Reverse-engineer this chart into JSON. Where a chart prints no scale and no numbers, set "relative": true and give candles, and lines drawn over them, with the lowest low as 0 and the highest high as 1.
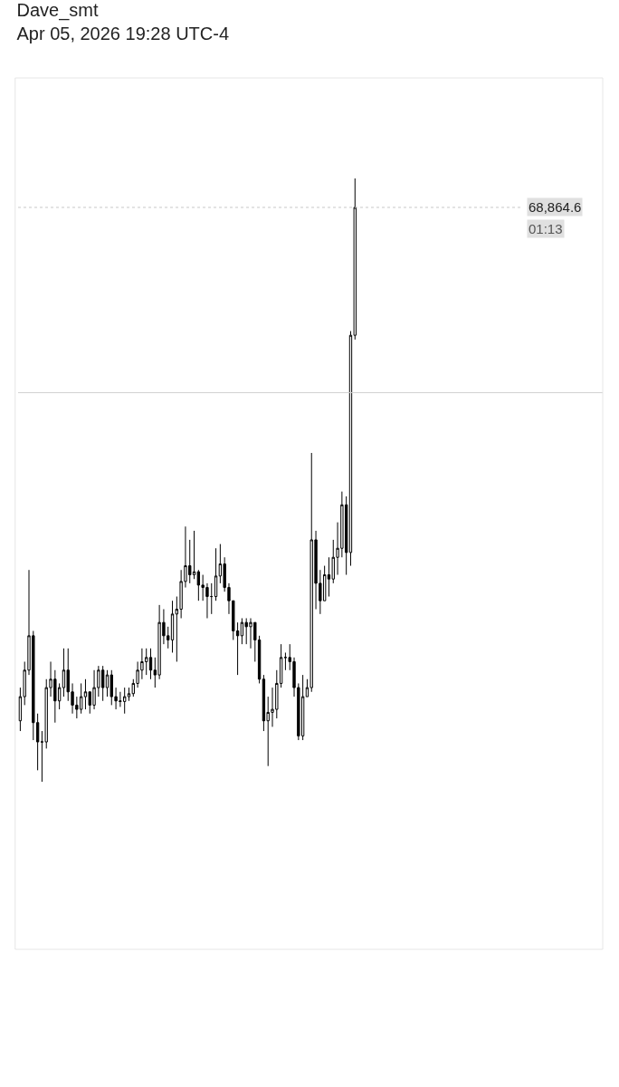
{
  "chart_data": {
    "type": "candlestick",
    "title": "Dave_smt",
    "subtitle": "Apr 05, 2026 19:28 UTC-4",
    "relative": true,
    "legend": false,
    "categories": [
      null,
      null,
      null,
      null,
      null,
      null,
      null,
      null,
      null,
      null,
      null,
      null,
      null,
      null,
      null,
      null,
      null,
      null,
      null,
      null,
      null,
      null,
      null,
      null,
      null,
      null,
      null,
      null,
      null,
      null,
      null,
      null,
      null,
      null,
      null,
      null,
      null,
      null,
      null,
      null,
      null,
      null,
      null,
      null,
      null,
      null,
      null,
      null,
      null,
      null,
      null,
      null,
      null,
      null,
      null,
      null,
      null,
      null,
      null,
      null,
      null,
      null,
      null,
      null,
      null,
      null,
      null,
      null,
      null,
      null,
      null,
      null,
      null,
      null,
      null,
      null,
      null,
      null
    ],
    "color": "#000000",
    "ohlc": [
      [
        0.101,
        0.156,
        0.084,
        0.141
      ],
      [
        0.141,
        0.199,
        0.127,
        0.185
      ],
      [
        0.185,
        0.351,
        0.177,
        0.242
      ],
      [
        0.242,
        0.25,
        0.069,
        0.098
      ],
      [
        0.098,
        0.113,
        0.019,
        0.066
      ],
      [
        0.066,
        0.084,
        0,
        0.066
      ],
      [
        0.066,
        0.17,
        0.055,
        0.156
      ],
      [
        0.156,
        0.199,
        0.141,
        0.17
      ],
      [
        0.17,
        0.185,
        0.098,
        0.134
      ],
      [
        0.134,
        0.163,
        0.12,
        0.156
      ],
      [
        0.156,
        0.221,
        0.141,
        0.185
      ],
      [
        0.185,
        0.221,
        0.134,
        0.149
      ],
      [
        0.149,
        0.163,
        0.113,
        0.127
      ],
      [
        0.127,
        0.141,
        0.105,
        0.12
      ],
      [
        0.12,
        0.163,
        0.113,
        0.141
      ],
      [
        0.141,
        0.17,
        0.12,
        0.149
      ],
      [
        0.149,
        0.149,
        0.113,
        0.127
      ],
      [
        0.127,
        0.185,
        0.12,
        0.156
      ],
      [
        0.156,
        0.192,
        0.141,
        0.185
      ],
      [
        0.185,
        0.192,
        0.134,
        0.156
      ],
      [
        0.156,
        0.185,
        0.141,
        0.177
      ],
      [
        0.177,
        0.185,
        0.127,
        0.141
      ],
      [
        0.141,
        0.156,
        0.12,
        0.134
      ],
      [
        0.134,
        0.149,
        0.124,
        0.133
      ],
      [
        0.133,
        0.156,
        0.113,
        0.141
      ],
      [
        0.141,
        0.156,
        0.134,
        0.146
      ],
      [
        0.146,
        0.17,
        0.141,
        0.163
      ],
      [
        0.163,
        0.199,
        0.156,
        0.185
      ],
      [
        0.185,
        0.221,
        0.17,
        0.199
      ],
      [
        0.199,
        0.221,
        0.177,
        0.206
      ],
      [
        0.206,
        0.221,
        0.17,
        0.185
      ],
      [
        0.185,
        0.206,
        0.156,
        0.177
      ],
      [
        0.177,
        0.293,
        0.17,
        0.264
      ],
      [
        0.264,
        0.286,
        0.228,
        0.242
      ],
      [
        0.242,
        0.257,
        0.221,
        0.235
      ],
      [
        0.235,
        0.3,
        0.214,
        0.278
      ],
      [
        0.278,
        0.307,
        0.199,
        0.286
      ],
      [
        0.286,
        0.351,
        0.271,
        0.332
      ],
      [
        0.332,
        0.423,
        0.322,
        0.358
      ],
      [
        0.358,
        0.401,
        0.329,
        0.343
      ],
      [
        0.343,
        0.416,
        0.336,
        0.348
      ],
      [
        0.348,
        0.351,
        0.3,
        0.326
      ],
      [
        0.326,
        0.343,
        0.3,
        0.322
      ],
      [
        0.322,
        0.329,
        0.271,
        0.307
      ],
      [
        0.307,
        0.329,
        0.278,
        0.307
      ],
      [
        0.307,
        0.387,
        0.3,
        0.341
      ],
      [
        0.341,
        0.394,
        0.329,
        0.361
      ],
      [
        0.361,
        0.372,
        0.315,
        0.322
      ],
      [
        0.322,
        0.329,
        0.278,
        0.3
      ],
      [
        0.3,
        0.3,
        0.235,
        0.25
      ],
      [
        0.25,
        0.264,
        0.177,
        0.242
      ],
      [
        0.242,
        0.271,
        0.228,
        0.264
      ],
      [
        0.264,
        0.271,
        0.228,
        0.257
      ],
      [
        0.257,
        0.271,
        0.221,
        0.264
      ],
      [
        0.264,
        0.264,
        0.199,
        0.235
      ],
      [
        0.235,
        0.242,
        0.163,
        0.17
      ],
      [
        0.17,
        0.177,
        0.084,
        0.101
      ],
      [
        0.101,
        0.141,
        0.026,
        0.115
      ],
      [
        0.115,
        0.156,
        0.091,
        0.12
      ],
      [
        0.12,
        0.185,
        0.105,
        0.163
      ],
      [
        0.163,
        0.228,
        0.156,
        0.206
      ],
      [
        0.206,
        0.214,
        0.185,
        0.206
      ],
      [
        0.206,
        0.228,
        0.185,
        0.199
      ],
      [
        0.199,
        0.206,
        0.141,
        0.156
      ],
      [
        0.156,
        0.163,
        0.069,
        0.076
      ],
      [
        0.076,
        0.177,
        0.069,
        0.141
      ],
      [
        0.141,
        0.17,
        0.141,
        0.156
      ],
      [
        0.156,
        0.545,
        0.149,
        0.401
      ],
      [
        0.401,
        0.416,
        0.286,
        0.329
      ],
      [
        0.329,
        0.351,
        0.278,
        0.3
      ],
      [
        0.3,
        0.358,
        0.3,
        0.343
      ],
      [
        0.343,
        0.372,
        0.307,
        0.336
      ],
      [
        0.336,
        0.401,
        0.329,
        0.372
      ],
      [
        0.372,
        0.43,
        0.343,
        0.387
      ],
      [
        0.387,
        0.481,
        0.372,
        0.459
      ],
      [
        0.459,
        0.473,
        0.343,
        0.38
      ],
      [
        0.38,
        0.747,
        0.358,
        0.74
      ],
      [
        0.74,
        1,
        0.733,
        0.952
      ]
    ],
    "ref_lines": [
      {
        "axis": "y",
        "value": 0.952,
        "line_style": "dotted",
        "color": "#c8c8c8"
      },
      {
        "axis": "y",
        "value": 0.645,
        "color": "#d0d0d0",
        "line_style": "solid"
      }
    ],
    "annotations": [
      "68,864.6",
      "01:13"
    ]
  }
}
